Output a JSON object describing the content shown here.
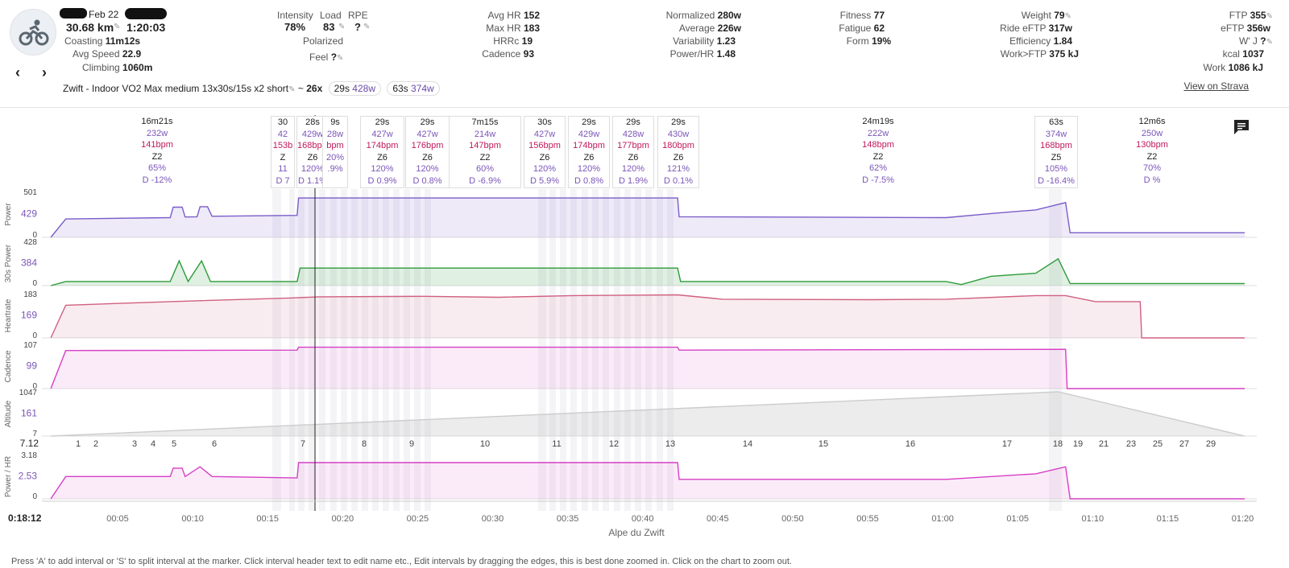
{
  "header": {
    "date": "Feb 22",
    "distance": "30.68 km",
    "duration": "1:20:03",
    "coasting_label": "Coasting",
    "coasting": "11m12s",
    "avg_speed_label": "Avg Speed",
    "avg_speed": "22.9",
    "climbing_label": "Climbing",
    "climbing": "1060m",
    "intensity_label": "Intensity",
    "intensity": "78%",
    "load_label": "Load",
    "load": "83",
    "rpe_label": "RPE",
    "rpe": "?",
    "polarized_label": "Polarized",
    "feel_label": "Feel",
    "feel": "?",
    "avg_hr_label": "Avg HR",
    "avg_hr": "152",
    "max_hr_label": "Max HR",
    "max_hr": "183",
    "hrrc_label": "HRRc",
    "hrrc": "19",
    "cadence_label": "Cadence",
    "cadence": "93",
    "normalized_label": "Normalized",
    "normalized": "280w",
    "average_label": "Average",
    "average": "226w",
    "variability_label": "Variability",
    "variability": "1.23",
    "powerhr_label": "Power/HR",
    "powerhr": "1.48",
    "fitness_label": "Fitness",
    "fitness": "77",
    "fatigue_label": "Fatigue",
    "fatigue": "62",
    "form_label": "Form",
    "form": "19%",
    "weight_label": "Weight",
    "weight": "79",
    "ride_eftp_label": "Ride eFTP",
    "ride_eftp": "317w",
    "efficiency_label": "Efficiency",
    "efficiency": "1.84",
    "work_ftp_label": "Work>FTP",
    "work_ftp": "375 kJ",
    "ftp_label": "FTP",
    "ftp": "355",
    "eftp_label": "eFTP",
    "eftp": "356w",
    "wj_label": "W' J",
    "wj": "?",
    "kcal_label": "kcal",
    "kcal": "1037",
    "work_label": "Work",
    "work": "1086 kJ",
    "title": "Zwift - Indoor VO2 Max medium 13x30s/15s x2 short",
    "tilde": "~",
    "reps": "26x",
    "pill1_time": "29s",
    "pill1_watts": "428w",
    "pill2_time": "63s",
    "pill2_watts": "374w",
    "strava": "View on Strava",
    "prev": "‹",
    "next": "›"
  },
  "intervals": [
    {
      "l": "16m21s",
      "w": "232w",
      "hr": "141bpm",
      "z": "Z2",
      "pct": "65%",
      "d": "D -12%"
    },
    {
      "l": "30",
      "w": "42",
      "hr": "153b",
      "z": "Z",
      "pct": "11",
      "d": "D 7"
    },
    {
      "l": "28s",
      "w": "429w",
      "hr": "168bpm",
      "z": "Z6",
      "pct": "120%",
      "d": "D 1.1%"
    },
    {
      "l": "9s",
      "w": "28w",
      "hr": "bpm",
      "z": "",
      "pct": "20%",
      "d": ".9%"
    },
    {
      "l": "29s",
      "w": "427w",
      "hr": "174bpm",
      "z": "Z6",
      "pct": "120%",
      "d": "D 0.9%"
    },
    {
      "l": "29s",
      "w": "427w",
      "hr": "176bpm",
      "z": "Z6",
      "pct": "120%",
      "d": "D 0.8%"
    },
    {
      "l": "7m15s",
      "w": "214w",
      "hr": "147bpm",
      "z": "Z2",
      "pct": "60%",
      "d": "D -6.9%"
    },
    {
      "l": "30s",
      "w": "427w",
      "hr": "156bpm",
      "z": "Z6",
      "pct": "120%",
      "d": "D 5.9%"
    },
    {
      "l": "29s",
      "w": "429w",
      "hr": "174bpm",
      "z": "Z6",
      "pct": "120%",
      "d": "D 0.8%"
    },
    {
      "l": "29s",
      "w": "428w",
      "hr": "177bpm",
      "z": "Z6",
      "pct": "120%",
      "d": "D 1.9%"
    },
    {
      "l": "29s",
      "w": "430w",
      "hr": "180bpm",
      "z": "Z6",
      "pct": "121%",
      "d": "D 0.1%"
    },
    {
      "l": "24m19s",
      "w": "222w",
      "hr": "148bpm",
      "z": "Z2",
      "pct": "62%",
      "d": "D -7.5%"
    },
    {
      "l": "63s",
      "w": "374w",
      "hr": "168bpm",
      "z": "Z5",
      "pct": "105%",
      "d": "D -16.4%"
    },
    {
      "l": "12m6s",
      "w": "250w",
      "hr": "130bpm",
      "z": "Z2",
      "pct": "70%",
      "d": "D %"
    }
  ],
  "charts": {
    "power": {
      "label": "Power",
      "ticks": [
        "501",
        "429",
        "0"
      ]
    },
    "p30": {
      "label": "30s Power",
      "ticks": [
        "428",
        "384",
        "0"
      ]
    },
    "hr": {
      "label": "Heartrate",
      "ticks": [
        "183",
        "169",
        "0"
      ]
    },
    "cad": {
      "label": "Cadence",
      "ticks": [
        "107",
        "99",
        "0"
      ]
    },
    "alt": {
      "label": "Altitude",
      "ticks": [
        "1047",
        "161",
        "7"
      ]
    },
    "phr": {
      "label": "Power / HR",
      "ticks": [
        "3.18",
        "2.53",
        "0"
      ]
    }
  },
  "segments": {
    "start": "7.12",
    "labels": [
      "1",
      "2",
      "3",
      "4",
      "5",
      "6",
      "7",
      "8",
      "9",
      "10",
      "11",
      "12",
      "13",
      "14",
      "15",
      "16",
      "17",
      "18",
      "19",
      "21",
      "23",
      "25",
      "27",
      "29"
    ]
  },
  "x_axis": {
    "start": "0:18:12",
    "ticks": [
      "00:05",
      "00:10",
      "00:15",
      "00:20",
      "00:25",
      "00:30",
      "00:35",
      "00:40",
      "00:45",
      "00:50",
      "00:55",
      "01:00",
      "01:05",
      "01:10",
      "01:15",
      "01:20"
    ],
    "title": "Alpe du Zwift"
  },
  "footer": "Press 'A' to add interval or 'S' to split interval at the marker. Click interval header text to edit name etc., Edit intervals by dragging the edges, this is best done zoomed in. Click on the chart to zoom out.",
  "chart_data": {
    "type": "line",
    "title": "Zwift - Indoor VO2 Max medium 13x30s/15s x2 short",
    "xlabel": "Alpe du Zwift",
    "x_ticks": [
      "00:05",
      "00:10",
      "00:15",
      "00:20",
      "00:25",
      "00:30",
      "00:35",
      "00:40",
      "00:45",
      "00:50",
      "00:55",
      "01:00",
      "01:05",
      "01:10",
      "01:15",
      "01:20"
    ],
    "x_range_min": [
      0,
      80
    ],
    "series": [
      {
        "name": "Power",
        "ylim": [
          0,
          501
        ],
        "unit": "w",
        "points": [
          [
            0,
            0
          ],
          [
            1,
            200
          ],
          [
            8,
            215
          ],
          [
            8.2,
            330
          ],
          [
            8.8,
            330
          ],
          [
            9,
            222
          ],
          [
            9.8,
            225
          ],
          [
            10,
            335
          ],
          [
            10.5,
            335
          ],
          [
            10.8,
            230
          ],
          [
            16.5,
            240
          ],
          [
            16.6,
            430
          ],
          [
            42,
            430
          ],
          [
            42.1,
            225
          ],
          [
            60,
            215
          ],
          [
            63,
            260
          ],
          [
            66,
            300
          ],
          [
            68,
            380
          ],
          [
            68.3,
            50
          ],
          [
            80,
            50
          ]
        ]
      },
      {
        "name": "30s Power",
        "ylim": [
          0,
          428
        ],
        "unit": "w",
        "points": [
          [
            0,
            0
          ],
          [
            1,
            40
          ],
          [
            8,
            40
          ],
          [
            8.6,
            240
          ],
          [
            9.2,
            40
          ],
          [
            10.1,
            240
          ],
          [
            10.7,
            40
          ],
          [
            16.5,
            40
          ],
          [
            16.7,
            170
          ],
          [
            42,
            170
          ],
          [
            42.2,
            40
          ],
          [
            60,
            40
          ],
          [
            61,
            10
          ],
          [
            63,
            90
          ],
          [
            66,
            120
          ],
          [
            67.5,
            260
          ],
          [
            68.3,
            20
          ],
          [
            80,
            20
          ]
        ]
      },
      {
        "name": "Heartrate",
        "ylim": [
          0,
          183
        ],
        "unit": "bpm",
        "points": [
          [
            0,
            0
          ],
          [
            1,
            135
          ],
          [
            8,
            150
          ],
          [
            16,
            165
          ],
          [
            18,
            170
          ],
          [
            25,
            172
          ],
          [
            30,
            168
          ],
          [
            35,
            175
          ],
          [
            42,
            178
          ],
          [
            45,
            160
          ],
          [
            55,
            158
          ],
          [
            60,
            160
          ],
          [
            66,
            175
          ],
          [
            68,
            175
          ],
          [
            70,
            150
          ],
          [
            73,
            150
          ],
          [
            73.1,
            0
          ],
          [
            80,
            0
          ]
        ]
      },
      {
        "name": "Cadence",
        "ylim": [
          0,
          107
        ],
        "unit": "rpm",
        "points": [
          [
            0,
            0
          ],
          [
            1,
            92
          ],
          [
            16.5,
            93
          ],
          [
            16.6,
            100
          ],
          [
            42,
            100
          ],
          [
            42.1,
            93
          ],
          [
            68,
            95
          ],
          [
            68.1,
            0
          ],
          [
            80,
            0
          ]
        ]
      },
      {
        "name": "Altitude",
        "ylim": [
          7,
          1047
        ],
        "unit": "m",
        "points": [
          [
            0,
            7
          ],
          [
            67.5,
            1047
          ],
          [
            80,
            7
          ]
        ]
      },
      {
        "name": "Power / HR",
        "ylim": [
          0,
          3.18
        ],
        "unit": "",
        "points": [
          [
            0,
            0
          ],
          [
            1,
            1.6
          ],
          [
            8,
            1.6
          ],
          [
            8.2,
            2.2
          ],
          [
            8.8,
            2.2
          ],
          [
            9,
            1.6
          ],
          [
            10,
            2.3
          ],
          [
            10.8,
            1.6
          ],
          [
            16.5,
            1.5
          ],
          [
            16.6,
            2.6
          ],
          [
            42,
            2.6
          ],
          [
            42.1,
            1.4
          ],
          [
            60,
            1.4
          ],
          [
            66,
            1.8
          ],
          [
            68,
            2.3
          ],
          [
            68.3,
            0
          ],
          [
            80,
            0
          ]
        ]
      }
    ]
  }
}
